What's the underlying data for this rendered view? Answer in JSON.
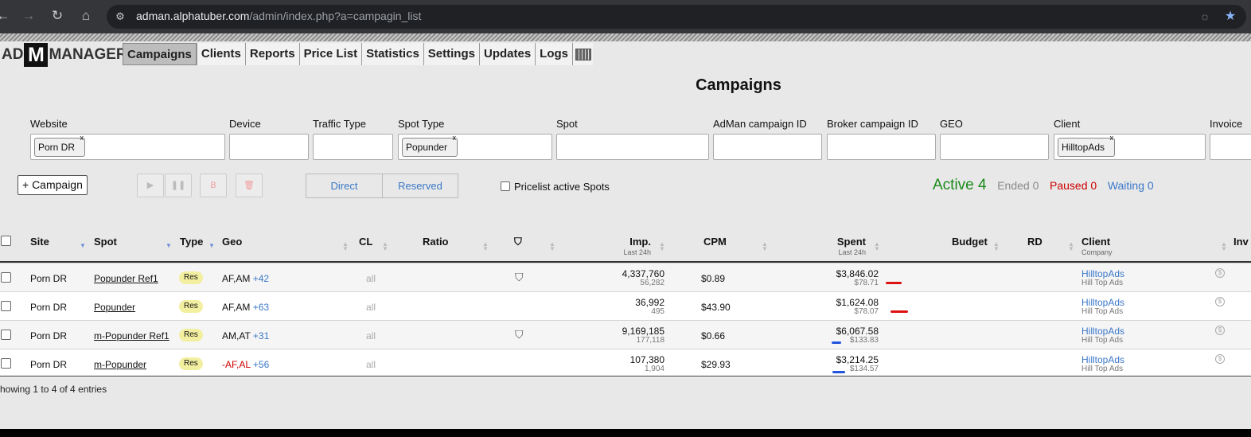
{
  "browser": {
    "url_host": "adman.alphatuber.com",
    "url_path": "/admin/index.php?a=campagin_list"
  },
  "logo": {
    "left": "AD",
    "mid": "M",
    "right": "MANAGER"
  },
  "menu": [
    "Campaigns",
    "Clients",
    "Reports",
    "Price List",
    "Statistics",
    "Settings",
    "Updates",
    "Logs"
  ],
  "page_title": "Campaigns",
  "filters": {
    "website": {
      "label": "Website",
      "tag": "Porn DR"
    },
    "device": {
      "label": "Device"
    },
    "traffic_type": {
      "label": "Traffic Type"
    },
    "spot_type": {
      "label": "Spot Type",
      "tag": "Popunder"
    },
    "spot": {
      "label": "Spot"
    },
    "adman_id": {
      "label": "AdMan campaign ID"
    },
    "broker_id": {
      "label": "Broker campaign ID"
    },
    "geo": {
      "label": "GEO"
    },
    "client": {
      "label": "Client",
      "tag": "HilltopAds"
    },
    "invoice": {
      "label": "Invoice"
    }
  },
  "tag_close": "x",
  "toolbar": {
    "add_campaign": "+ Campaign",
    "play_icon": "▶",
    "pause_icon": "❚❚",
    "b_label": "B",
    "delete_icon": "🗑",
    "direct": "Direct",
    "reserved": "Reserved",
    "pricelist_label": "Pricelist active Spots"
  },
  "stats": {
    "active": "Active 4",
    "ended": "Ended 0",
    "paused": "Paused 0",
    "waiting": "Waiting 0"
  },
  "columns": {
    "site": "Site",
    "spot": "Spot",
    "type": "Type",
    "geo": "Geo",
    "cl": "CL",
    "ratio": "Ratio",
    "imp": "Imp.",
    "imp_sub": "Last 24h",
    "cpm": "CPM",
    "spent": "Spent",
    "spent_sub": "Last 24h",
    "budget": "Budget",
    "rd": "RD",
    "client": "Client",
    "client_sub": "Company",
    "inv": "Inv"
  },
  "rows": [
    {
      "site": "Porn DR",
      "spot": "Popunder Ref1",
      "type": "Res",
      "geo": "AF,AM",
      "geo_neg": false,
      "geo_more": "+42",
      "cl": "all",
      "shield": true,
      "imp": "4,337,760",
      "imp_24h": "56,282",
      "cpm": "$0.89",
      "spent": "$3,846.02",
      "spent_24h": "$78.71",
      "client": "HilltopAds",
      "company": "Hill Top Ads",
      "mark_color": "#d11"
    },
    {
      "site": "Porn DR",
      "spot": "Popunder",
      "type": "Res",
      "geo": "AF,AM",
      "geo_neg": false,
      "geo_more": "+63",
      "cl": "all",
      "shield": false,
      "imp": "36,992",
      "imp_24h": "495",
      "cpm": "$43.90",
      "spent": "$1,624.08",
      "spent_24h": "$78.07",
      "client": "HilltopAds",
      "company": "Hill Top Ads",
      "mark_color": "#d11"
    },
    {
      "site": "Porn DR",
      "spot": "m-Popunder Ref1",
      "type": "Res",
      "geo": "AM,AT",
      "geo_neg": false,
      "geo_more": "+31",
      "cl": "all",
      "shield": true,
      "imp": "9,169,185",
      "imp_24h": "177,118",
      "cpm": "$0.66",
      "spent": "$6,067.58",
      "spent_24h": "$133.83",
      "client": "HilltopAds",
      "company": "Hill Top Ads",
      "mark_color": "#2255dd"
    },
    {
      "site": "Porn DR",
      "spot": "m-Popunder",
      "type": "Res",
      "geo": "-AF,AL",
      "geo_neg": true,
      "geo_more": "+56",
      "cl": "all",
      "shield": false,
      "imp": "107,380",
      "imp_24h": "1,904",
      "cpm": "$29.93",
      "spent": "$3,214.25",
      "spent_24h": "$134.57",
      "client": "HilltopAds",
      "company": "Hill Top Ads",
      "mark_color": "#2255dd"
    }
  ],
  "footer": "howing 1 to 4 of 4 entries"
}
